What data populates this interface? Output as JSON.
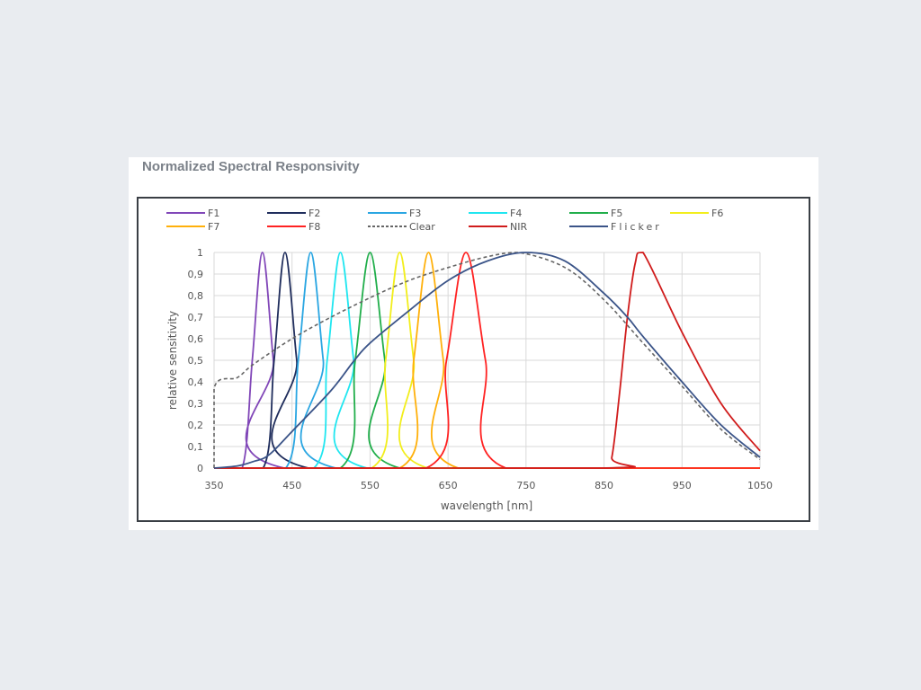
{
  "chart_data": {
    "type": "line",
    "title": "Normalized Spectral Responsivity",
    "xlabel": "wavelength [nm]",
    "ylabel": "relative sensitivity",
    "xlim": [
      350,
      1050
    ],
    "ylim": [
      0,
      1
    ],
    "x_ticks": [
      "350",
      "450",
      "550",
      "650",
      "750",
      "850",
      "950",
      "1050"
    ],
    "y_ticks": [
      "0",
      "0,1",
      "0,2",
      "0,3",
      "0,4",
      "0,5",
      "0,6",
      "0,7",
      "0,8",
      "0,9",
      "1"
    ],
    "grid": true,
    "legend_position": "top",
    "series": [
      {
        "name": "F1",
        "color": "#8147b8",
        "x": [
          350,
          386,
          399,
          412,
          426,
          440,
          1050
        ],
        "y": [
          0,
          0,
          0.5,
          1,
          0.5,
          0,
          0
        ]
      },
      {
        "name": "F2",
        "color": "#1f2d5c",
        "x": [
          350,
          413,
          427,
          441,
          456,
          471,
          1050
        ],
        "y": [
          0,
          0,
          0.5,
          1,
          0.5,
          0,
          0
        ]
      },
      {
        "name": "F3",
        "color": "#2aa6e2",
        "x": [
          350,
          442,
          458,
          474,
          490,
          506,
          1050
        ],
        "y": [
          0,
          0,
          0.5,
          1,
          0.5,
          0,
          0
        ]
      },
      {
        "name": "F4",
        "color": "#20e6f0",
        "x": [
          350,
          478,
          495,
          512,
          529,
          546,
          1050
        ],
        "y": [
          0,
          0,
          0.5,
          1,
          0.5,
          0,
          0
        ]
      },
      {
        "name": "F5",
        "color": "#21ae4b",
        "x": [
          350,
          512,
          531,
          550,
          569,
          588,
          1050
        ],
        "y": [
          0,
          0,
          0.5,
          1,
          0.5,
          0,
          0
        ]
      },
      {
        "name": "F6",
        "color": "#f2ee1c",
        "x": [
          350,
          552,
          570,
          588,
          606,
          624,
          1050
        ],
        "y": [
          0,
          0,
          0.5,
          1,
          0.5,
          0,
          0
        ]
      },
      {
        "name": "F7",
        "color": "#ffb00a",
        "x": [
          350,
          588,
          606,
          625,
          644,
          663,
          1050
        ],
        "y": [
          0,
          0,
          0.5,
          1,
          0.5,
          0,
          0
        ]
      },
      {
        "name": "F8",
        "color": "#ff2222",
        "x": [
          350,
          622,
          648,
          673,
          698,
          724,
          1050
        ],
        "y": [
          0,
          0,
          0.5,
          1,
          0.5,
          0,
          0
        ]
      },
      {
        "name": "Clear",
        "color": "#666666",
        "dashed": true,
        "x": [
          350,
          350,
          380,
          400,
          450,
          500,
          550,
          600,
          650,
          700,
          740,
          800,
          850,
          900,
          950,
          1000,
          1050
        ],
        "y": [
          0,
          0.37,
          0.42,
          0.48,
          0.6,
          0.7,
          0.79,
          0.87,
          0.93,
          0.98,
          1.0,
          0.93,
          0.78,
          0.58,
          0.38,
          0.18,
          0.04
        ]
      },
      {
        "name": "NIR",
        "color": "#d01c1c",
        "x": [
          350,
          850,
          860,
          870,
          880,
          890,
          900,
          950,
          1000,
          1050
        ],
        "y": [
          0,
          0,
          0.05,
          0.35,
          0.7,
          0.95,
          1.0,
          0.63,
          0.3,
          0.08
        ]
      },
      {
        "name": "Flicker",
        "color": "#3b5488",
        "x": [
          350,
          380,
          400,
          420,
          450,
          500,
          530,
          550,
          600,
          650,
          700,
          750,
          800,
          850,
          880,
          900,
          950,
          1000,
          1050
        ],
        "y": [
          0,
          0.01,
          0.03,
          0.06,
          0.17,
          0.36,
          0.5,
          0.58,
          0.73,
          0.87,
          0.96,
          1.0,
          0.96,
          0.81,
          0.7,
          0.61,
          0.4,
          0.2,
          0.05
        ]
      }
    ]
  }
}
